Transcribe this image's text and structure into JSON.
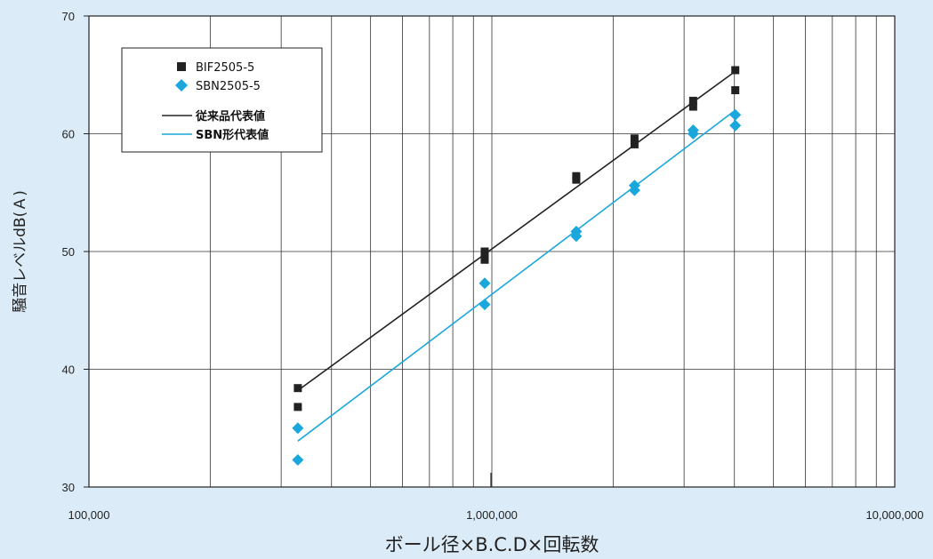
{
  "chart_data": {
    "type": "scatter",
    "x_scale": "log",
    "xlabel": "ボール径×B.C.D×回転数",
    "ylabel": "騒音レベルdB(Ａ)",
    "xlim": [
      100000,
      10000000
    ],
    "ylim": [
      30,
      70
    ],
    "x_ticks": [
      {
        "value": 100000,
        "label": "100,000"
      },
      {
        "value": 1000000,
        "label": "1,000,000"
      },
      {
        "value": 10000000,
        "label": "10,000,000"
      }
    ],
    "y_ticks": [
      {
        "value": 30,
        "label": "30"
      },
      {
        "value": 40,
        "label": "40"
      },
      {
        "value": 50,
        "label": "50"
      },
      {
        "value": 60,
        "label": "60"
      },
      {
        "value": 70,
        "label": "70"
      }
    ],
    "grid": true,
    "legend_position": "top-left",
    "series": [
      {
        "name": "BIF2505-5",
        "marker": "square",
        "color": "#222222",
        "points": [
          [
            330000,
            38.4
          ],
          [
            330000,
            36.8
          ],
          [
            960000,
            50.0
          ],
          [
            960000,
            49.6
          ],
          [
            960000,
            49.3
          ],
          [
            1620000,
            56.4
          ],
          [
            1620000,
            56.1
          ],
          [
            2260000,
            59.6
          ],
          [
            2260000,
            59.1
          ],
          [
            3160000,
            62.8
          ],
          [
            3160000,
            62.3
          ],
          [
            4020000,
            65.4
          ],
          [
            4020000,
            63.7
          ]
        ]
      },
      {
        "name": "SBN2505-5",
        "marker": "diamond",
        "color": "#1aa7dc",
        "points": [
          [
            330000,
            35.0
          ],
          [
            330000,
            32.3
          ],
          [
            960000,
            47.3
          ],
          [
            960000,
            45.5
          ],
          [
            1620000,
            51.7
          ],
          [
            1620000,
            51.3
          ],
          [
            2260000,
            55.6
          ],
          [
            2260000,
            55.2
          ],
          [
            3160000,
            60.3
          ],
          [
            3160000,
            60.0
          ],
          [
            4020000,
            61.6
          ],
          [
            4020000,
            60.7
          ]
        ]
      }
    ],
    "lines": [
      {
        "name": "従来品代表値",
        "color": "#222222",
        "points": [
          [
            330000,
            38.2
          ],
          [
            4020000,
            65.3
          ]
        ]
      },
      {
        "name": "SBN形代表値",
        "color": "#1aa7dc",
        "points": [
          [
            330000,
            33.9
          ],
          [
            4020000,
            62.0
          ]
        ]
      }
    ]
  }
}
